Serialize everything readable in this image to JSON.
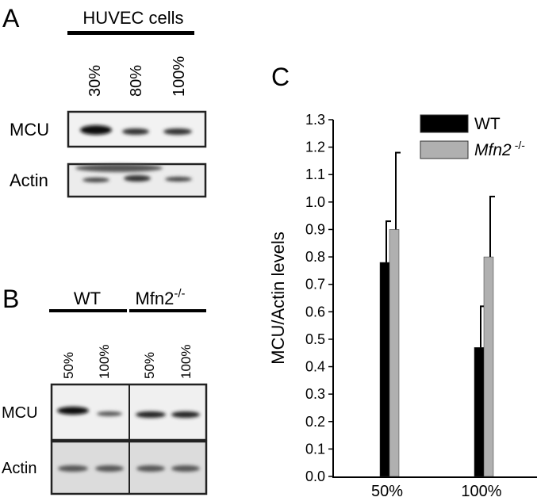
{
  "panels": {
    "A": {
      "label": "A",
      "title": "HUVEC cells",
      "lanes": [
        "30%",
        "80%",
        "100%"
      ],
      "rows": [
        "MCU",
        "Actin"
      ]
    },
    "B": {
      "label": "B",
      "groups": [
        {
          "name": "WT"
        },
        {
          "name": "Mfn2",
          "superscript": "-/-"
        }
      ],
      "lanes": [
        "50%",
        "100%",
        "50%",
        "100%"
      ],
      "rows": [
        "MCU",
        "Actin"
      ]
    },
    "C": {
      "label": "C"
    }
  },
  "chart_data": {
    "type": "bar",
    "y_label": "MCU/Actin levels",
    "categories": [
      "50%",
      "100%"
    ],
    "series": [
      {
        "name": "WT",
        "color": "#000000",
        "values": [
          0.78,
          0.47
        ],
        "errors": [
          0.15,
          0.15
        ]
      },
      {
        "name": "Mfn2",
        "name_superscript": "-/-",
        "color": "#b0b0b0",
        "values": [
          0.9,
          0.8
        ],
        "errors": [
          0.28,
          0.22
        ]
      }
    ],
    "ylim": [
      0,
      1.3
    ],
    "yticks": [
      {
        "value": 0,
        "label": "0.0"
      },
      0.1,
      0.2,
      0.3,
      0.4,
      0.5,
      0.6,
      0.7,
      0.8,
      0.9,
      {
        "value": 1,
        "label": "1.0"
      },
      1.1,
      1.2,
      1.3
    ],
    "legend": "upper right"
  }
}
